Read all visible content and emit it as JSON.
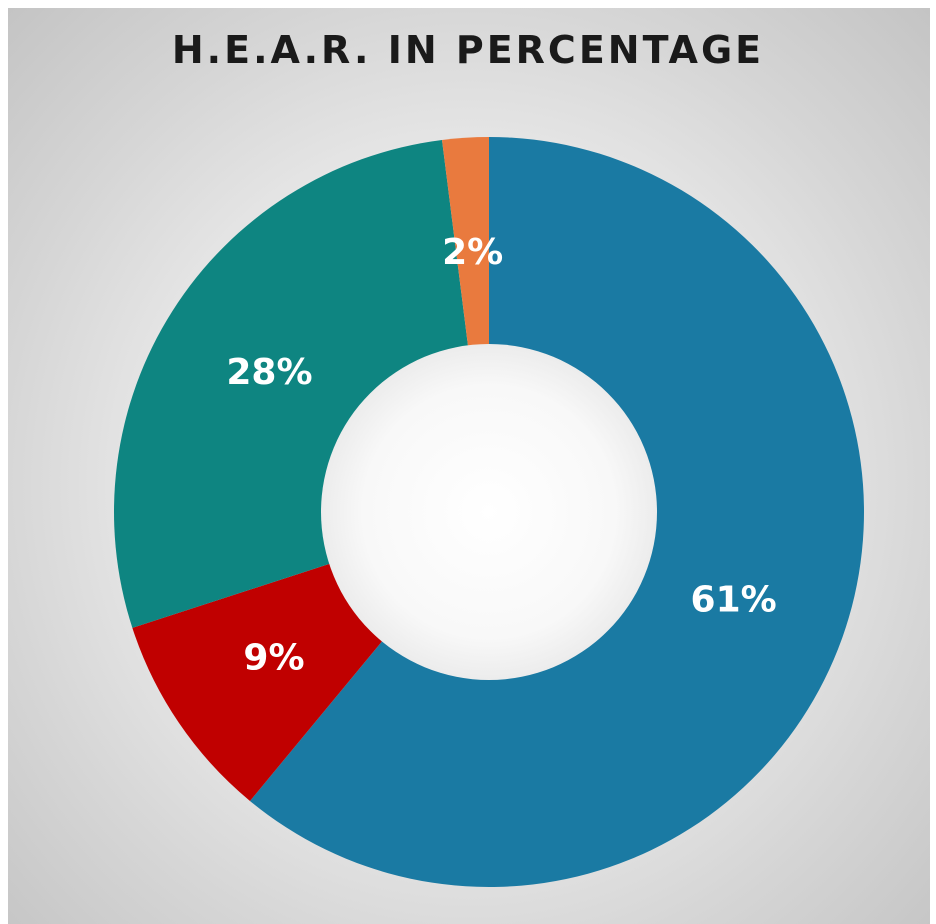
{
  "chart_data": {
    "type": "pie",
    "title": "H.E.A.R. IN PERCENTAGE",
    "donut": true,
    "slices": [
      {
        "value": 61,
        "label": "61%",
        "color": "#1a7aa3"
      },
      {
        "value": 9,
        "label": "9%",
        "color": "#c00000"
      },
      {
        "value": 28,
        "label": "28%",
        "color": "#0e8581"
      },
      {
        "value": 2,
        "label": "2%",
        "color": "#e97a3e"
      }
    ],
    "start_angle_deg": 0,
    "direction": "clockwise",
    "legend": "none"
  }
}
